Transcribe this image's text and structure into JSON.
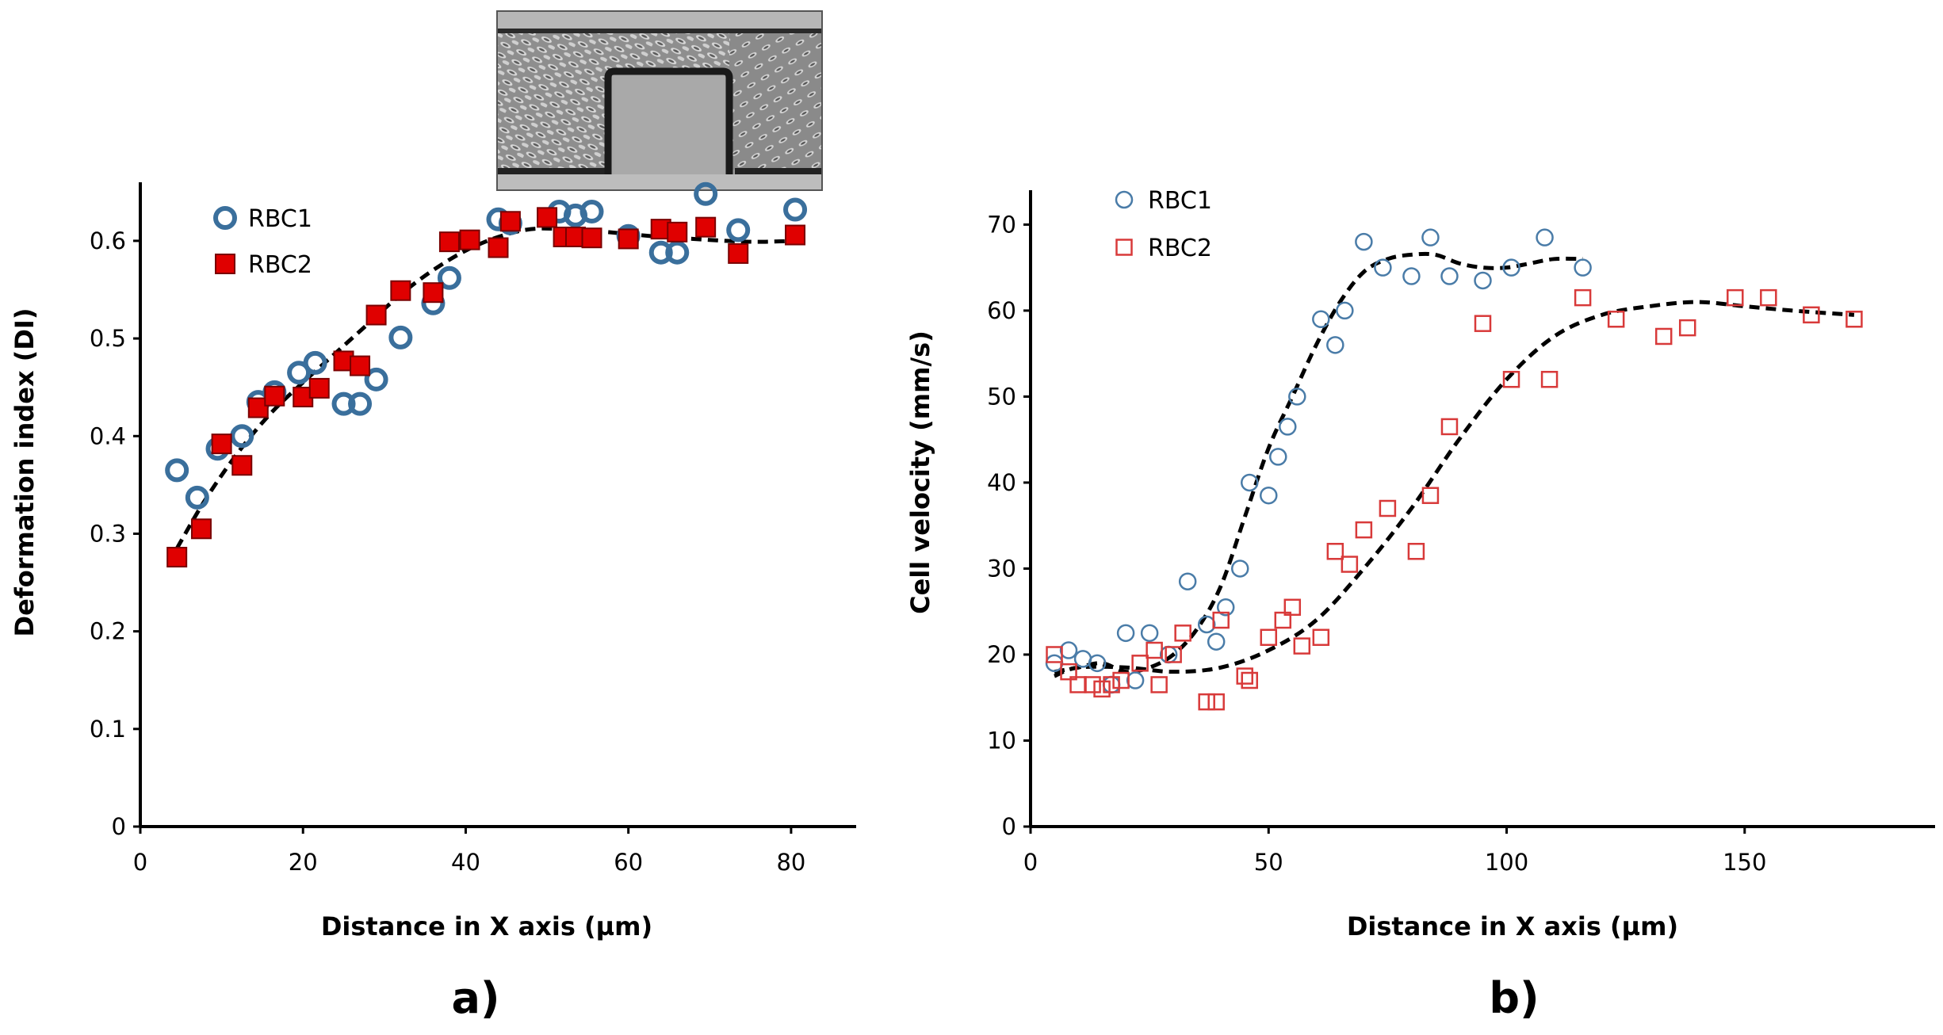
{
  "inset_image": {
    "name": "microchannel-micrograph"
  },
  "colors": {
    "rbc1_a": "#3a6f9c",
    "rbc2_a_fill": "#e00000",
    "rbc2_a_stroke": "#7a0000",
    "rbc1_b": "#4a7ca8",
    "rbc2_b": "#d83a3a",
    "fit": "#000000"
  },
  "chart_data": [
    {
      "type": "scatter",
      "panel_label": "a)",
      "xlabel": "Distance in X axis (µm)",
      "ylabel": "Deformation index (DI)",
      "xlim": [
        0,
        88
      ],
      "ylim": [
        0,
        0.66
      ],
      "x_ticks": [
        0,
        20,
        40,
        60,
        80
      ],
      "y_ticks": [
        0,
        0.1,
        0.2,
        0.3,
        0.4,
        0.5,
        0.6
      ],
      "x_tick_labels": [
        "0",
        "20",
        "40",
        "60",
        "80"
      ],
      "y_tick_labels": [
        "0",
        "0.1",
        "0.2",
        "0.3",
        "0.4",
        "0.5",
        "0.6"
      ],
      "legend_position": "top-left",
      "series": [
        {
          "name": "RBC1",
          "marker": "circle-open",
          "x": [
            4.5,
            7,
            9.5,
            12.5,
            14.5,
            16.5,
            19.5,
            21.5,
            25,
            27,
            29,
            32,
            36,
            38,
            44,
            45.5,
            51.5,
            53.5,
            55.5,
            60,
            64,
            66,
            69.5,
            73.5,
            80.5
          ],
          "y": [
            0.365,
            0.337,
            0.387,
            0.4,
            0.435,
            0.445,
            0.465,
            0.475,
            0.433,
            0.433,
            0.458,
            0.501,
            0.536,
            0.562,
            0.622,
            0.618,
            0.63,
            0.626,
            0.63,
            0.605,
            0.588,
            0.588,
            0.648,
            0.611,
            0.632
          ]
        },
        {
          "name": "RBC2",
          "marker": "square-filled",
          "x": [
            4.5,
            7.5,
            10,
            12.5,
            14.5,
            16.5,
            20,
            22,
            25,
            27,
            29,
            32,
            36,
            38,
            40.5,
            44,
            45.5,
            50,
            52,
            53.5,
            55.5,
            60,
            64,
            66,
            69.5,
            73.5,
            80.5
          ],
          "y": [
            0.276,
            0.305,
            0.392,
            0.37,
            0.429,
            0.441,
            0.44,
            0.449,
            0.477,
            0.472,
            0.524,
            0.549,
            0.547,
            0.599,
            0.601,
            0.593,
            0.62,
            0.624,
            0.604,
            0.604,
            0.603,
            0.602,
            0.612,
            0.609,
            0.614,
            0.587,
            0.606
          ]
        }
      ],
      "fit_curves": [
        {
          "x": [
            4.5,
            8,
            12,
            16,
            20,
            24,
            28,
            32,
            36,
            40,
            44,
            48,
            52,
            56,
            60,
            64,
            68,
            72,
            76,
            80.5
          ],
          "y": [
            0.285,
            0.335,
            0.383,
            0.423,
            0.455,
            0.485,
            0.515,
            0.545,
            0.57,
            0.59,
            0.604,
            0.612,
            0.612,
            0.61,
            0.607,
            0.604,
            0.602,
            0.6,
            0.599,
            0.6
          ]
        }
      ]
    },
    {
      "type": "scatter",
      "panel_label": "b)",
      "xlabel": "Distance in X axis (µm)",
      "ylabel": "Cell velocity (mm/s)",
      "xlim": [
        0,
        190
      ],
      "ylim": [
        0,
        74
      ],
      "x_ticks": [
        0,
        50,
        100,
        150
      ],
      "y_ticks": [
        0,
        10,
        20,
        30,
        40,
        50,
        60,
        70
      ],
      "x_tick_labels": [
        "0",
        "50",
        "100",
        "150"
      ],
      "y_tick_labels": [
        "0",
        "10",
        "20",
        "30",
        "40",
        "50",
        "60",
        "70"
      ],
      "legend_position": "top-left",
      "series": [
        {
          "name": "RBC1",
          "marker": "circle-open",
          "x": [
            5,
            8,
            11,
            14,
            17,
            20,
            22,
            25,
            29,
            33,
            37,
            39,
            41,
            44,
            46,
            50,
            52,
            54,
            56,
            61,
            64,
            66,
            70,
            74,
            80,
            84,
            88,
            95,
            101,
            108,
            116
          ],
          "y": [
            19,
            20.5,
            19.5,
            19,
            16.5,
            22.5,
            17,
            22.5,
            20,
            28.5,
            23.5,
            21.5,
            25.5,
            30,
            40,
            38.5,
            43,
            46.5,
            50,
            59,
            56,
            60,
            68,
            65,
            64,
            68.5,
            64,
            63.5,
            65,
            68.5,
            65
          ]
        },
        {
          "name": "RBC2",
          "marker": "square-open",
          "x": [
            5,
            8,
            10,
            13,
            15,
            17,
            19,
            23,
            26,
            27,
            30,
            32,
            37,
            39,
            40,
            45,
            46,
            50,
            53,
            55,
            57,
            61,
            64,
            67,
            70,
            75,
            81,
            84,
            88,
            95,
            101,
            109,
            116,
            123,
            133,
            138,
            148,
            155,
            164,
            173
          ],
          "y": [
            20,
            18,
            16.5,
            16.5,
            16,
            16.5,
            17,
            19,
            20.5,
            16.5,
            20,
            22.5,
            14.5,
            14.5,
            24,
            17.5,
            17,
            22,
            24,
            25.5,
            21,
            22,
            32,
            30.5,
            34.5,
            37,
            32,
            38.5,
            46.5,
            58.5,
            52,
            52,
            61.5,
            59,
            57,
            58,
            61.5,
            61.5,
            59.5,
            59
          ]
        }
      ],
      "fit_curves": [
        {
          "x": [
            5,
            10,
            15,
            20,
            25,
            30,
            35,
            40,
            45,
            50,
            55,
            60,
            65,
            70,
            75,
            80,
            85,
            90,
            95,
            100,
            105,
            110,
            116
          ],
          "y": [
            18,
            18.5,
            19,
            18,
            18.5,
            20,
            23,
            28,
            36,
            44,
            50,
            56,
            61,
            64.5,
            66,
            66.5,
            66.5,
            65.5,
            65,
            65,
            65.5,
            66,
            66
          ]
        },
        {
          "x": [
            5,
            10,
            20,
            30,
            40,
            50,
            60,
            70,
            80,
            90,
            100,
            110,
            120,
            130,
            140,
            150,
            160,
            173
          ],
          "y": [
            17.5,
            18.5,
            18.5,
            18,
            18.5,
            20.5,
            24,
            30,
            37,
            45,
            52,
            57,
            59.5,
            60.5,
            61,
            60.5,
            60,
            59.5
          ]
        }
      ]
    }
  ]
}
